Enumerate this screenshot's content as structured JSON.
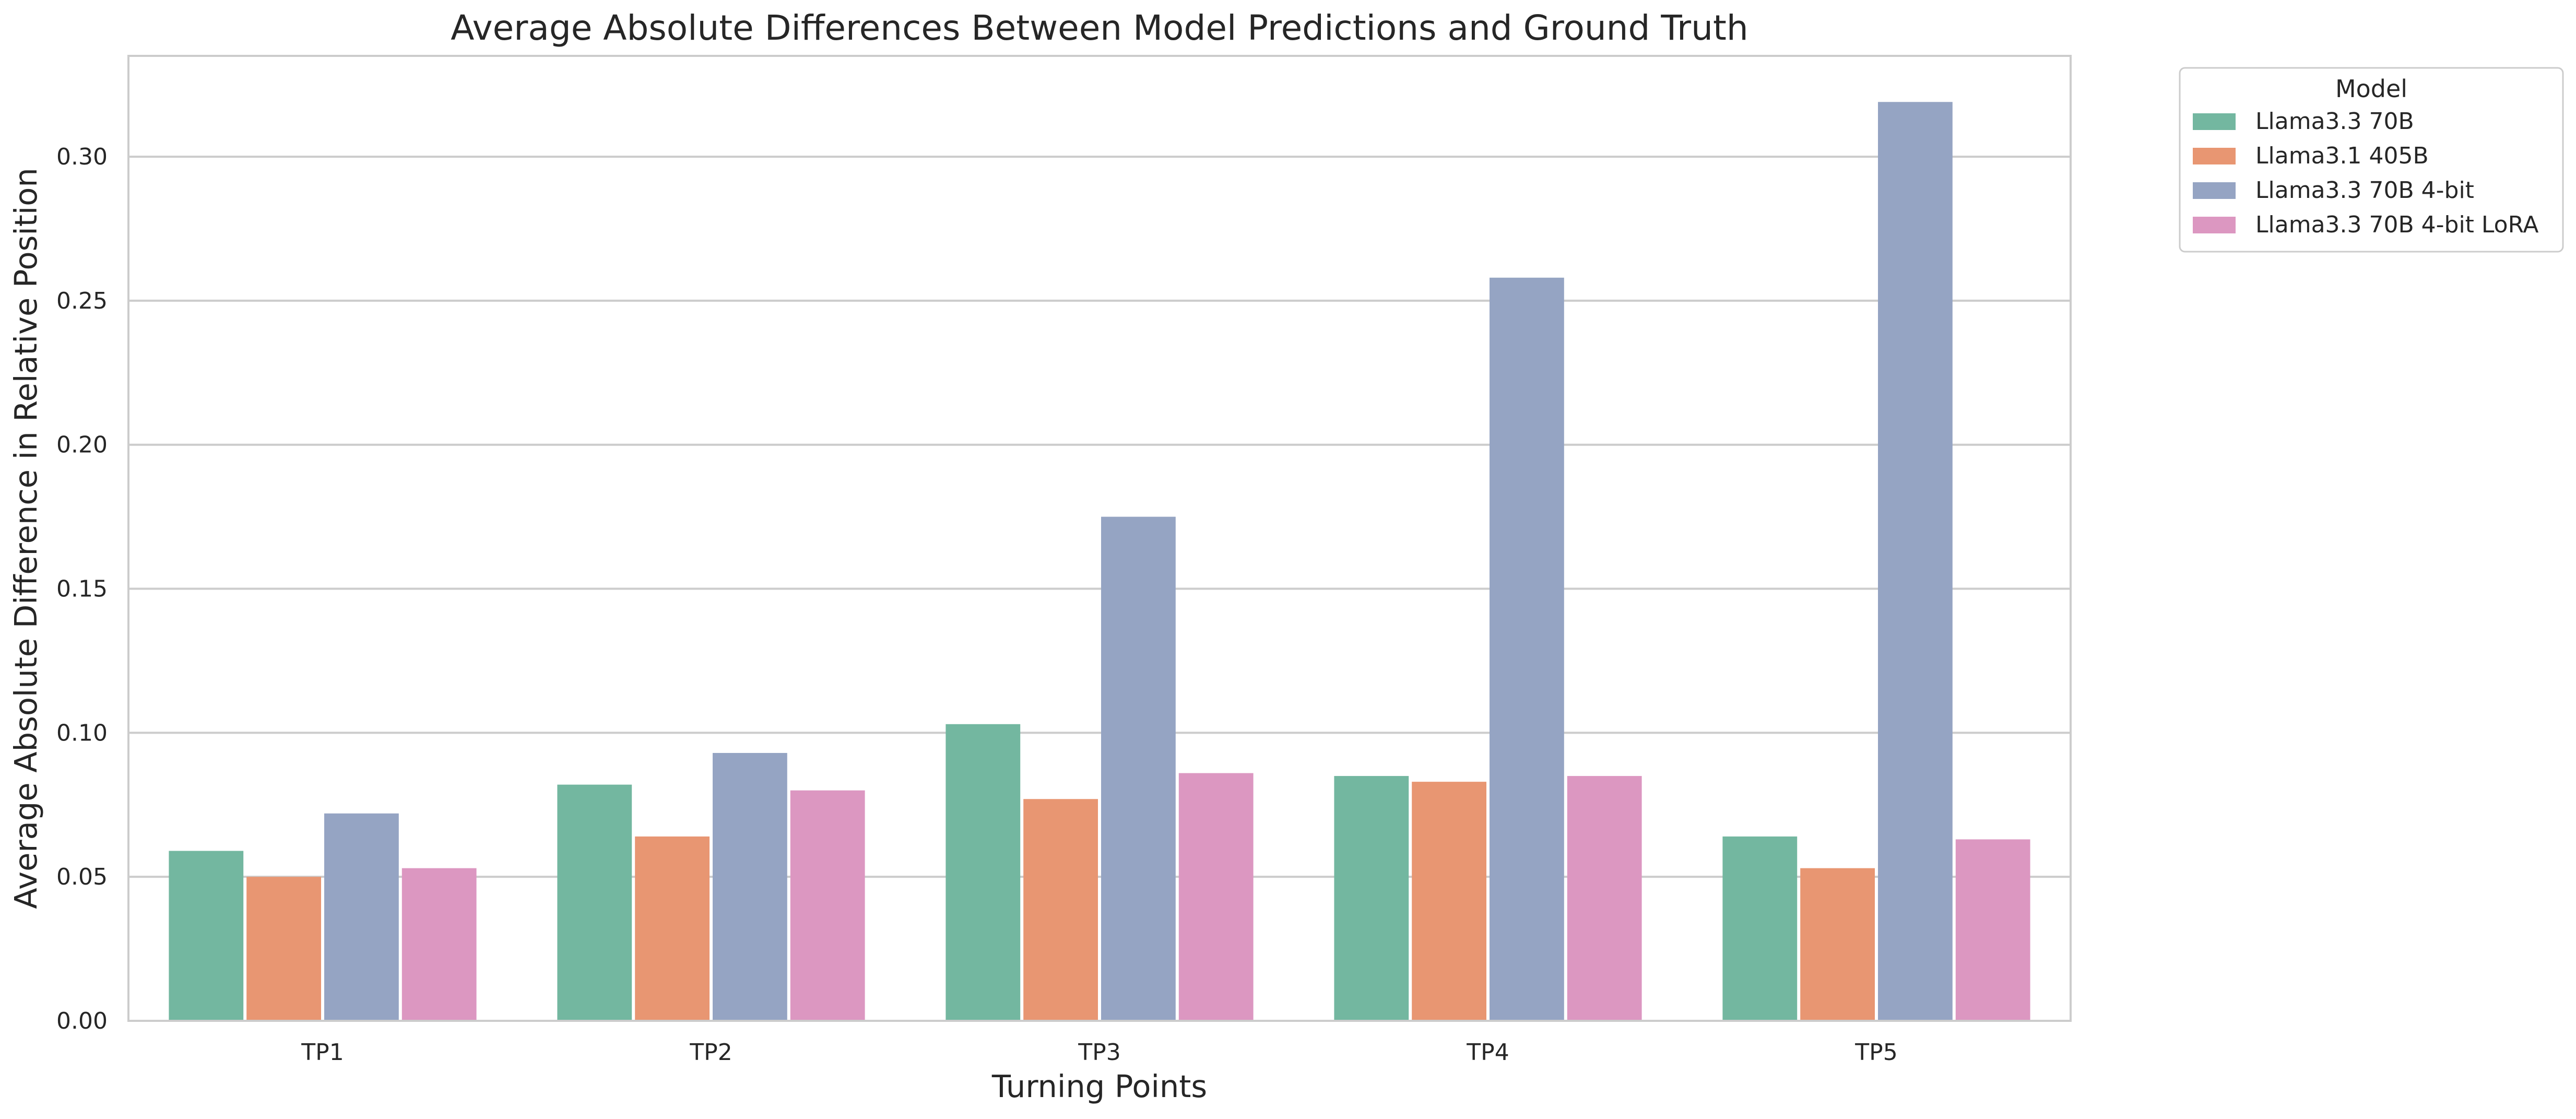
{
  "chart_data": {
    "type": "bar",
    "title": "Average Absolute Differences Between Model Predictions and Ground Truth",
    "xlabel": "Turning Points",
    "ylabel": "Average Absolute Difference in Relative Position",
    "categories": [
      "TP1",
      "TP2",
      "TP3",
      "TP4",
      "TP5"
    ],
    "ylim": [
      0,
      0.335
    ],
    "yticks": [
      "0.00",
      "0.05",
      "0.10",
      "0.15",
      "0.20",
      "0.25",
      "0.30"
    ],
    "grid": "horizontal",
    "legend": {
      "title": "Model",
      "placement": "outside top-right"
    },
    "series": [
      {
        "name": "Llama3.3 70B",
        "color": "#73b7a0",
        "values": [
          0.059,
          0.082,
          0.103,
          0.085,
          0.064
        ]
      },
      {
        "name": "Llama3.1 405B",
        "color": "#e89672",
        "values": [
          0.05,
          0.064,
          0.077,
          0.083,
          0.053
        ]
      },
      {
        "name": "Llama3.3 70B 4-bit",
        "color": "#95a4c3",
        "values": [
          0.072,
          0.093,
          0.175,
          0.258,
          0.319
        ]
      },
      {
        "name": "Llama3.3 70B 4-bit LoRA",
        "color": "#dc97c1",
        "values": [
          0.053,
          0.08,
          0.086,
          0.085,
          0.063
        ]
      }
    ]
  }
}
